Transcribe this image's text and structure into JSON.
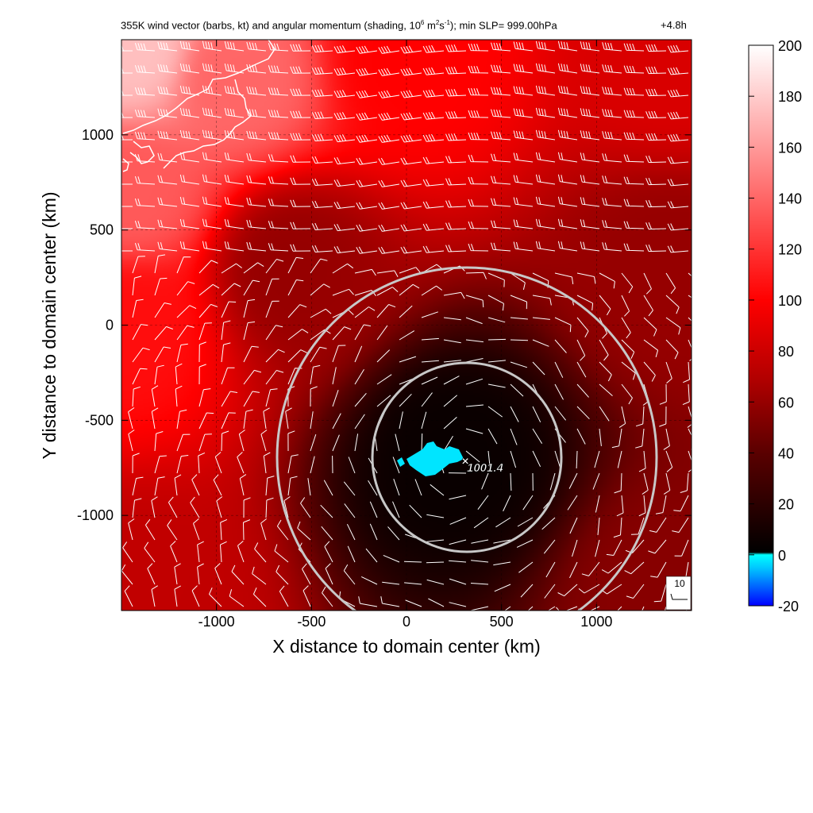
{
  "chart_data": {
    "type": "heatmap",
    "title": "355K wind vector (barbs, kt) and angular momentum (shading, 10^6 m^2s^-1); min SLP= 999.00hPa",
    "title_parts": {
      "prefix": "355K wind vector (barbs, kt) and angular momentum (shading, 10",
      "exp1": "6",
      "mid1": " m",
      "exp2": "2",
      "mid2": "s",
      "exp3": "-1",
      "suffix": "); min SLP= 999.00hPa"
    },
    "forecast_time": "+4.8h",
    "xlabel": "X distance to domain center (km)",
    "ylabel": "Y distance to domain center (km)",
    "xlim": [
      -1500,
      1500
    ],
    "ylim": [
      -1500,
      1500
    ],
    "x_ticks": [
      -1000,
      -500,
      0,
      500,
      1000
    ],
    "y_ticks": [
      1000,
      500,
      0,
      -500,
      -1000
    ],
    "colorbar": {
      "ticks": [
        200,
        180,
        160,
        140,
        120,
        100,
        80,
        60,
        40,
        20,
        0,
        -20
      ],
      "range": [
        -20,
        200
      ],
      "stops": [
        {
          "value": -20,
          "color": "#0000ff"
        },
        {
          "value": -5,
          "color": "#00c8ff"
        },
        {
          "value": 0,
          "color": "#00ffff"
        },
        {
          "value": 1,
          "color": "#000000"
        },
        {
          "value": 40,
          "color": "#5a0000"
        },
        {
          "value": 70,
          "color": "#b40000"
        },
        {
          "value": 100,
          "color": "#ff0000"
        },
        {
          "value": 150,
          "color": "#ff8080"
        },
        {
          "value": 200,
          "color": "#ffffff"
        }
      ]
    },
    "field_anchors": [
      {
        "x": 250,
        "y": -700,
        "value": 5
      },
      {
        "x": -1450,
        "y": 1450,
        "value": 175
      },
      {
        "x": -1450,
        "y": 700,
        "value": 135
      },
      {
        "x": -900,
        "y": 1300,
        "value": 140
      },
      {
        "x": 0,
        "y": 1400,
        "value": 100
      },
      {
        "x": 1400,
        "y": 1400,
        "value": 85
      },
      {
        "x": -1450,
        "y": 0,
        "value": 105
      },
      {
        "x": -1400,
        "y": -1400,
        "value": 75
      },
      {
        "x": 1400,
        "y": -1400,
        "value": 55
      },
      {
        "x": 1400,
        "y": 300,
        "value": 60
      },
      {
        "x": -600,
        "y": 300,
        "value": 60
      }
    ],
    "center_marker": {
      "x": 300,
      "y": -700,
      "label": "1001.4"
    },
    "radius_circles_km": [
      500,
      1000
    ],
    "barb_reference": {
      "label": "10"
    },
    "colors": {
      "cyan_region": "#00e5ff",
      "circle": "#c8c8c8",
      "barb": "#ffffff",
      "coastline": "#ffffff"
    }
  }
}
